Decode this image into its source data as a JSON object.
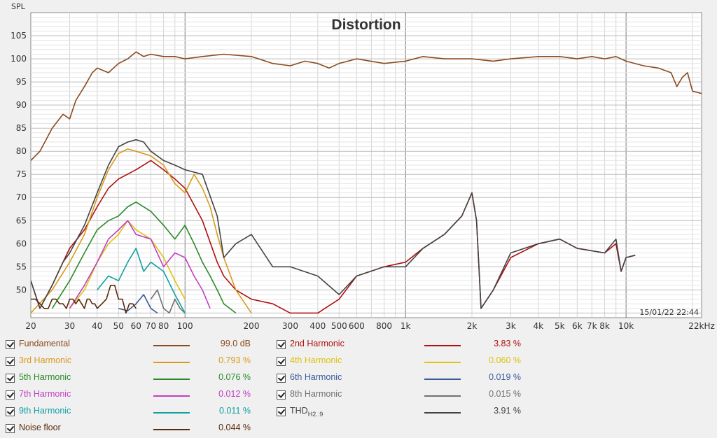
{
  "chart_data": {
    "type": "line",
    "title": "Distortion",
    "ylabel": "SPL",
    "xlabel": "",
    "x_scale": "log",
    "xlim": [
      20,
      22000
    ],
    "ylim": [
      44,
      110
    ],
    "grid": true,
    "timestamp": "15/01/22 22:44",
    "x_ticks": [
      {
        "v": 20,
        "l": "20"
      },
      {
        "v": 30,
        "l": "30"
      },
      {
        "v": 40,
        "l": "40"
      },
      {
        "v": 50,
        "l": "50"
      },
      {
        "v": 60,
        "l": "60"
      },
      {
        "v": 70,
        "l": "70"
      },
      {
        "v": 80,
        "l": "80"
      },
      {
        "v": 100,
        "l": "100"
      },
      {
        "v": 200,
        "l": "200"
      },
      {
        "v": 300,
        "l": "300"
      },
      {
        "v": 400,
        "l": "400"
      },
      {
        "v": 500,
        "l": "500"
      },
      {
        "v": 600,
        "l": "600"
      },
      {
        "v": 800,
        "l": "800"
      },
      {
        "v": 1000,
        "l": "1k"
      },
      {
        "v": 2000,
        "l": "2k"
      },
      {
        "v": 3000,
        "l": "3k"
      },
      {
        "v": 4000,
        "l": "4k"
      },
      {
        "v": 5000,
        "l": "5k"
      },
      {
        "v": 6000,
        "l": "6k"
      },
      {
        "v": 7000,
        "l": "7k"
      },
      {
        "v": 8000,
        "l": "8k"
      },
      {
        "v": 10000,
        "l": "10k"
      },
      {
        "v": 22000,
        "l": "22kHz"
      }
    ],
    "y_ticks": [
      50,
      55,
      60,
      65,
      70,
      75,
      80,
      85,
      90,
      95,
      100,
      105
    ],
    "series": [
      {
        "name": "Fundamental",
        "color": "#8b4a1e",
        "x": [
          20,
          22,
          25,
          28,
          30,
          32,
          35,
          38,
          40,
          45,
          50,
          55,
          60,
          65,
          70,
          80,
          90,
          100,
          120,
          150,
          200,
          250,
          300,
          350,
          400,
          450,
          500,
          600,
          800,
          1000,
          1200,
          1500,
          2000,
          2500,
          3000,
          4000,
          5000,
          6000,
          7000,
          8000,
          9000,
          10000,
          12000,
          14000,
          16000,
          17000,
          18000,
          19000,
          20000,
          22000
        ],
        "y": [
          78,
          80,
          85,
          88,
          87,
          91,
          94,
          97,
          98,
          97,
          99,
          100,
          101.5,
          100.5,
          101,
          100.5,
          100.5,
          100,
          100.5,
          101,
          100.5,
          99,
          98.5,
          99.5,
          99,
          98,
          99,
          100,
          99,
          99.5,
          100.5,
          100,
          100,
          99.5,
          100,
          100.5,
          100.5,
          100,
          100.5,
          100,
          100.5,
          99.5,
          98.5,
          98,
          97,
          94,
          96,
          97,
          93,
          92.5
        ]
      },
      {
        "name": "2nd Harmonic",
        "color": "#b01010",
        "x": [
          20,
          22,
          25,
          28,
          30,
          35,
          40,
          45,
          50,
          60,
          70,
          80,
          90,
          100,
          120,
          140,
          150,
          170,
          200,
          250,
          300,
          400,
          500,
          600,
          800,
          1000,
          1200,
          1500,
          1800,
          2000,
          2100,
          2200,
          2500,
          3000,
          4000,
          5000,
          6000,
          8000,
          9000,
          9500,
          10000,
          11000
        ],
        "y": [
          52,
          46,
          51,
          56,
          59,
          63,
          68,
          72,
          74,
          76,
          78,
          76,
          74,
          72,
          65,
          56,
          53,
          50,
          48,
          47,
          45,
          45,
          48,
          53,
          55,
          56,
          59,
          62,
          66,
          71,
          65,
          46,
          50,
          57,
          60,
          61,
          59,
          58,
          60,
          54,
          57,
          57.5
        ]
      },
      {
        "name": "3rd Harmonic",
        "color": "#d99a1a",
        "x": [
          20,
          25,
          30,
          35,
          40,
          45,
          50,
          55,
          60,
          70,
          80,
          90,
          100,
          110,
          120,
          130,
          140,
          150,
          170,
          200
        ],
        "y": [
          45,
          50,
          56,
          62,
          70,
          76,
          79.5,
          80.5,
          80,
          79,
          77,
          73,
          71,
          75,
          72,
          68,
          62,
          57,
          50,
          45
        ]
      },
      {
        "name": "4th Harmonic",
        "color": "#e0c010",
        "x": [
          30,
          35,
          40,
          45,
          50,
          55,
          60,
          70,
          80,
          90,
          100
        ],
        "y": [
          46,
          50,
          56,
          60,
          62,
          65,
          63,
          61,
          57,
          52,
          48
        ]
      },
      {
        "name": "5th Harmonic",
        "color": "#2a8a2a",
        "x": [
          25,
          30,
          35,
          40,
          45,
          50,
          55,
          60,
          70,
          80,
          90,
          100,
          110,
          120,
          130,
          140,
          150,
          170
        ],
        "y": [
          46,
          52,
          58,
          63,
          65,
          66,
          68,
          69,
          67,
          64,
          61,
          64,
          60,
          56,
          53,
          50,
          47,
          45
        ]
      },
      {
        "name": "6th Harmonic",
        "color": "#3a5a9a",
        "x": [
          50,
          55,
          60,
          65,
          70,
          75
        ],
        "y": [
          46,
          45.5,
          47,
          49,
          46,
          45
        ]
      },
      {
        "name": "7th Harmonic",
        "color": "#c040c0",
        "x": [
          30,
          35,
          40,
          45,
          50,
          55,
          60,
          70,
          80,
          90,
          100,
          110,
          120,
          130
        ],
        "y": [
          46,
          51,
          56,
          61,
          63,
          65,
          62,
          61,
          55,
          58,
          57,
          53,
          50,
          46
        ]
      },
      {
        "name": "8th Harmonic",
        "color": "#707070",
        "x": [
          70,
          75,
          80,
          85,
          90,
          95,
          100
        ],
        "y": [
          48,
          50,
          46,
          45,
          48,
          46,
          45
        ]
      },
      {
        "name": "9th Harmonic",
        "color": "#10a0a0",
        "x": [
          40,
          45,
          50,
          55,
          60,
          65,
          70,
          80,
          90,
          100
        ],
        "y": [
          50,
          53,
          52,
          56,
          59,
          54,
          56,
          54,
          49,
          45
        ]
      },
      {
        "name": "THD",
        "color": "#444444",
        "x": [
          20,
          22,
          25,
          28,
          30,
          35,
          40,
          45,
          50,
          55,
          60,
          65,
          70,
          80,
          90,
          100,
          120,
          140,
          150,
          170,
          200,
          250,
          300,
          400,
          500,
          600,
          800,
          1000,
          1200,
          1500,
          1800,
          2000,
          2100,
          2200,
          2500,
          3000,
          4000,
          5000,
          6000,
          8000,
          9000,
          9500,
          10000,
          11000
        ],
        "y": [
          52,
          46,
          51,
          56,
          58,
          64,
          71,
          77,
          81,
          82,
          82.5,
          82,
          80,
          78,
          77,
          76,
          75,
          66,
          57,
          60,
          62,
          55,
          55,
          53,
          49,
          53,
          55,
          55,
          59,
          62,
          66,
          71,
          65,
          46,
          50,
          58,
          60,
          61,
          59,
          58,
          61,
          54,
          57,
          57.5
        ]
      },
      {
        "name": "Noise floor",
        "color": "#5a2a0a",
        "x": [
          20,
          21,
          22,
          23,
          24,
          25,
          26,
          27,
          28,
          29,
          30,
          31,
          32,
          33,
          34,
          35,
          36,
          37,
          38,
          39,
          40,
          42,
          44,
          46,
          48,
          50,
          52,
          54,
          56,
          58,
          60
        ],
        "y": [
          48,
          48,
          47,
          46,
          46,
          48,
          48,
          47,
          47,
          46,
          48,
          48,
          47,
          48,
          47,
          46,
          48,
          48,
          47,
          47,
          46,
          47,
          48,
          51,
          51,
          48,
          48,
          45,
          47,
          47,
          46
        ]
      }
    ]
  },
  "legend": [
    {
      "label": "Fundamental",
      "color": "#8b4a1e",
      "value": "99.0 dB"
    },
    {
      "label": "2nd Harmonic",
      "color": "#b01010",
      "value": "3.83 %"
    },
    {
      "label": "3rd Harmonic",
      "color": "#d99a1a",
      "value": "0.793 %"
    },
    {
      "label": "4th Harmonic",
      "color": "#e0c010",
      "value": "0.060 %"
    },
    {
      "label": "5th Harmonic",
      "color": "#2a8a2a",
      "value": "0.076 %"
    },
    {
      "label": "6th Harmonic",
      "color": "#3a5a9a",
      "value": "0.019 %"
    },
    {
      "label": "7th Harmonic",
      "color": "#c040c0",
      "value": "0.012 %"
    },
    {
      "label": "8th Harmonic",
      "color": "#707070",
      "value": "0.015 %"
    },
    {
      "label": "9th Harmonic",
      "color": "#10a0a0",
      "value": "0.011 %"
    },
    {
      "label": "THD",
      "sub": "H2..9",
      "color": "#444444",
      "value": "3.91 %"
    },
    {
      "label": "Noise floor",
      "color": "#5a2a0a",
      "value": "0.044 %"
    }
  ]
}
